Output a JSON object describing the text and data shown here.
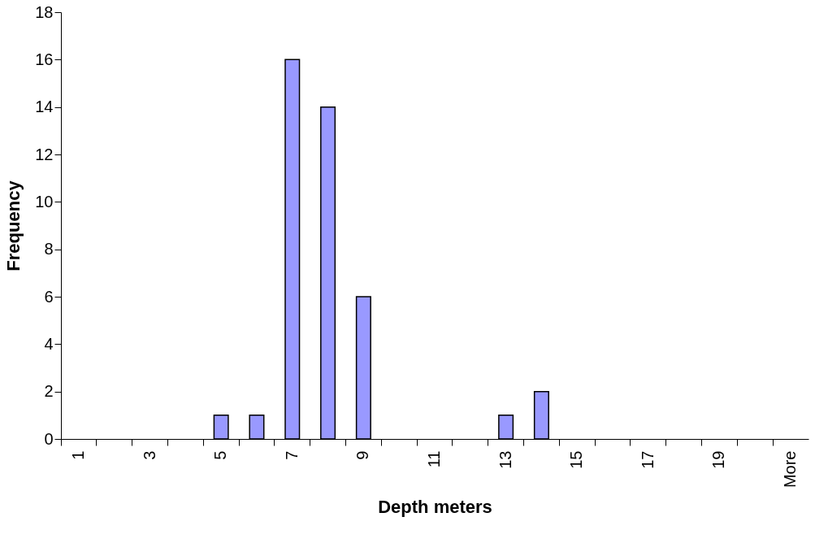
{
  "chart_data": {
    "type": "bar",
    "xlabel": "Depth meters",
    "ylabel": "Frequency",
    "categories": [
      "1",
      null,
      "3",
      null,
      "5",
      null,
      "7",
      null,
      "9",
      null,
      "11",
      null,
      "13",
      null,
      "15",
      null,
      "17",
      null,
      "19",
      null,
      "More"
    ],
    "values": [
      0,
      0,
      0,
      0,
      1,
      1,
      16,
      14,
      6,
      0,
      0,
      0,
      1,
      2,
      0,
      0,
      0,
      0,
      0,
      0,
      0
    ],
    "color": "#9999ff",
    "ylim": [
      0,
      18
    ],
    "yticks": [
      0,
      2,
      4,
      6,
      8,
      10,
      12,
      14,
      16,
      18
    ],
    "grid": false
  }
}
